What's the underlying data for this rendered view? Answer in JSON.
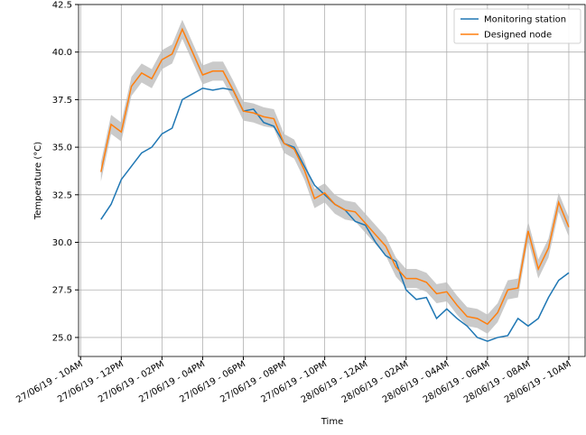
{
  "chart_data": {
    "type": "line",
    "xlabel": "Time",
    "ylabel": "Temperature (°C)",
    "x": [
      1,
      1.5,
      2,
      2.5,
      3,
      3.5,
      4,
      4.5,
      5,
      5.5,
      6,
      6.5,
      7,
      7.5,
      8,
      8.5,
      9,
      9.5,
      10,
      10.5,
      11,
      11.5,
      12,
      12.5,
      13,
      13.5,
      14,
      14.5,
      15,
      15.5,
      16,
      16.5,
      17,
      17.5,
      18,
      18.5,
      19,
      19.5,
      20,
      20.5,
      21,
      21.5,
      22,
      22.5,
      23,
      23.5,
      24
    ],
    "series": [
      {
        "name": "Monitoring station",
        "color": "#1f77b4",
        "values": [
          31.2,
          32.0,
          33.3,
          34.0,
          34.7,
          35.0,
          35.7,
          36.0,
          37.5,
          37.8,
          38.1,
          38.0,
          38.1,
          38.0,
          36.9,
          37.0,
          36.3,
          36.1,
          35.2,
          35.0,
          34.0,
          33.0,
          32.5,
          32.0,
          31.7,
          31.1,
          30.9,
          30.0,
          29.3,
          29.0,
          27.5,
          27.0,
          27.1,
          26.0,
          26.5,
          26.0,
          25.6,
          25.0,
          24.8,
          25.0,
          25.1,
          26.0,
          25.6,
          26.0,
          27.1,
          28.0,
          28.4
        ]
      },
      {
        "name": "Designed node",
        "color": "#ff7f0e",
        "band_color": "#bdbdbd",
        "values": [
          33.7,
          36.2,
          35.8,
          38.2,
          38.9,
          38.6,
          39.6,
          39.9,
          41.2,
          40.0,
          38.8,
          39.0,
          39.0,
          38.0,
          36.9,
          36.8,
          36.6,
          36.5,
          35.2,
          34.9,
          33.8,
          32.3,
          32.6,
          32.0,
          31.7,
          31.6,
          31.0,
          30.4,
          29.8,
          28.7,
          28.1,
          28.1,
          27.9,
          27.3,
          27.4,
          26.7,
          26.1,
          26.0,
          25.7,
          26.3,
          27.5,
          27.6,
          30.6,
          28.6,
          29.7,
          32.1,
          30.8
        ],
        "band": [
          0.5,
          0.5,
          0.5,
          0.5,
          0.5,
          0.5,
          0.5,
          0.5,
          0.5,
          0.5,
          0.5,
          0.5,
          0.5,
          0.5,
          0.5,
          0.5,
          0.5,
          0.5,
          0.5,
          0.5,
          0.5,
          0.5,
          0.5,
          0.5,
          0.5,
          0.5,
          0.5,
          0.5,
          0.5,
          0.5,
          0.5,
          0.5,
          0.5,
          0.5,
          0.5,
          0.5,
          0.5,
          0.5,
          0.5,
          0.5,
          0.5,
          0.5,
          0.5,
          0.5,
          0.5,
          0.5,
          0.5
        ]
      }
    ],
    "xlim": [
      -0.1,
      24.8
    ],
    "xticks": [
      {
        "value": 0,
        "label": "27/06/19 - 10AM"
      },
      {
        "value": 2,
        "label": "27/06/19 - 12PM"
      },
      {
        "value": 4,
        "label": "27/06/19 - 02PM"
      },
      {
        "value": 6,
        "label": "27/06/19 - 04PM"
      },
      {
        "value": 8,
        "label": "27/06/19 - 06PM"
      },
      {
        "value": 10,
        "label": "27/06/19 - 08PM"
      },
      {
        "value": 12,
        "label": "27/06/19 - 10PM"
      },
      {
        "value": 14,
        "label": "28/06/19 - 12AM"
      },
      {
        "value": 16,
        "label": "28/06/19 - 02AM"
      },
      {
        "value": 18,
        "label": "28/06/19 - 04AM"
      },
      {
        "value": 20,
        "label": "28/06/19 - 06AM"
      },
      {
        "value": 22,
        "label": "28/06/19 - 08AM"
      },
      {
        "value": 24,
        "label": "28/06/19 - 10AM"
      }
    ],
    "ylim": [
      24.0,
      42.5
    ],
    "yticks": [
      {
        "value": 25,
        "label": "25.0"
      },
      27.5,
      {
        "value": 30,
        "label": "30.0"
      },
      32.5,
      {
        "value": 35,
        "label": "35.0"
      },
      37.5,
      {
        "value": 40,
        "label": "40.0"
      },
      42.5
    ],
    "grid": true,
    "legend": "upper right"
  }
}
